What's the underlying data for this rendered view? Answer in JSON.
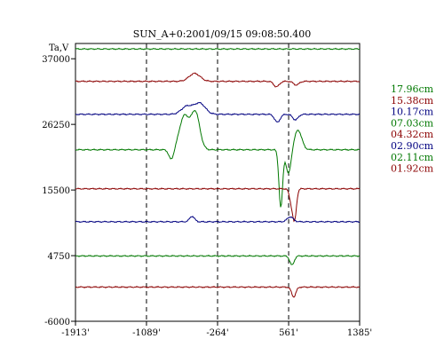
{
  "chart_data": {
    "type": "line",
    "title": "SUN_A+0:2001/09/15 09:08:50.400",
    "ylabel": "Ta,V",
    "xlabel": "",
    "xlim": [
      -1913,
      1385
    ],
    "ylim": [
      -6000,
      39500
    ],
    "x_ticks": [
      {
        "value": -1913,
        "label": "-1913'"
      },
      {
        "value": -1089,
        "label": "-1089'"
      },
      {
        "value": -264,
        "label": "-264'"
      },
      {
        "value": 561,
        "label": "561'"
      },
      {
        "value": 1385,
        "label": "1385'"
      }
    ],
    "y_ticks": [
      {
        "value": 37000,
        "label": "37000"
      },
      {
        "value": 26250,
        "label": "26250"
      },
      {
        "value": 15500,
        "label": "15500"
      },
      {
        "value": 4750,
        "label": "4750"
      },
      {
        "value": -6000,
        "label": "-6000"
      }
    ],
    "vertical_dashed_lines": [
      -1089,
      -264,
      561
    ],
    "grid": false,
    "legend_position": "right",
    "series": [
      {
        "name": "17.96cm",
        "color": "#007800",
        "baseline": 38600,
        "features": []
      },
      {
        "name": "15.38cm",
        "color": "#8b0000",
        "baseline": 33300,
        "features": [
          {
            "x": -530,
            "w": 90,
            "a": 1300
          },
          {
            "x": 420,
            "w": 45,
            "a": -900
          },
          {
            "x": 650,
            "w": 45,
            "a": -600
          }
        ]
      },
      {
        "name": "10.17cm",
        "color": "#000080",
        "baseline": 27900,
        "features": [
          {
            "x": -620,
            "w": 90,
            "a": 1300
          },
          {
            "x": -470,
            "w": 90,
            "a": 1800
          },
          {
            "x": 430,
            "w": 45,
            "a": -1300
          },
          {
            "x": 640,
            "w": 45,
            "a": -900
          }
        ]
      },
      {
        "name": "07.03cm",
        "color": "#007800",
        "baseline": 22100,
        "features": [
          {
            "x": -800,
            "w": 40,
            "a": -1700
          },
          {
            "x": -650,
            "w": 80,
            "a": 5500
          },
          {
            "x": -520,
            "w": 70,
            "a": 6000
          },
          {
            "x": 470,
            "w": 30,
            "a": -9500
          },
          {
            "x": 560,
            "w": 40,
            "a": -4000
          },
          {
            "x": 670,
            "w": 60,
            "a": 3200
          }
        ]
      },
      {
        "name": "04.32cm",
        "color": "#8b0000",
        "baseline": 15700,
        "features": [
          {
            "x": 590,
            "w": 30,
            "a": -2000
          },
          {
            "x": 630,
            "w": 30,
            "a": -5000
          }
        ]
      },
      {
        "name": "02.90cm",
        "color": "#000080",
        "baseline": 10300,
        "features": [
          {
            "x": -560,
            "w": 40,
            "a": 900
          },
          {
            "x": 580,
            "w": 50,
            "a": 800
          }
        ]
      },
      {
        "name": "02.11cm",
        "color": "#007800",
        "baseline": 4700,
        "features": [
          {
            "x": 600,
            "w": 35,
            "a": -1500
          }
        ]
      },
      {
        "name": "01.92cm",
        "color": "#8b0000",
        "baseline": -400,
        "features": [
          {
            "x": 620,
            "w": 35,
            "a": -1600
          }
        ]
      }
    ]
  }
}
